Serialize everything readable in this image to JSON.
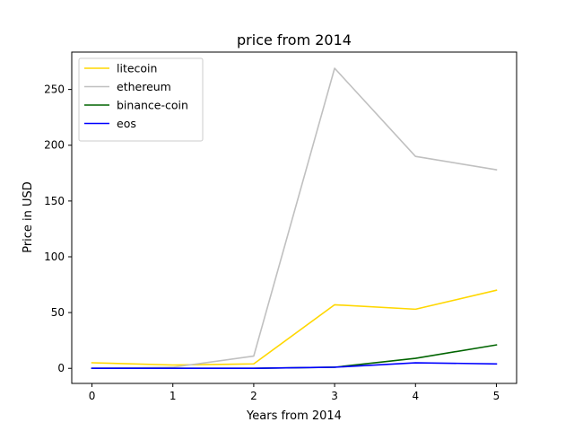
{
  "chart_data": {
    "type": "line",
    "title": "price from 2014",
    "xlabel": "Years from 2014",
    "ylabel": "Price in USD",
    "x": [
      0,
      1,
      2,
      3,
      4,
      5
    ],
    "xticks": [
      "0",
      "1",
      "2",
      "3",
      "4",
      "5"
    ],
    "yticks": [
      "0",
      "50",
      "100",
      "150",
      "200",
      "250"
    ],
    "xlim": [
      -0.25,
      5.25
    ],
    "ylim": [
      -13.5,
      283.5
    ],
    "grid": false,
    "legend_position": "top-left",
    "series": [
      {
        "name": "litecoin",
        "color": "#ffd700",
        "values": [
          5,
          3,
          4,
          57,
          53,
          70
        ]
      },
      {
        "name": "ethereum",
        "color": "#c0c0c0",
        "values": [
          0,
          1,
          11,
          269,
          190,
          178
        ]
      },
      {
        "name": "binance-coin",
        "color": "#006400",
        "values": [
          0,
          0,
          0,
          1,
          9,
          21
        ]
      },
      {
        "name": "eos",
        "color": "#0000ff",
        "values": [
          0,
          0,
          0,
          1,
          5,
          4
        ]
      }
    ]
  }
}
